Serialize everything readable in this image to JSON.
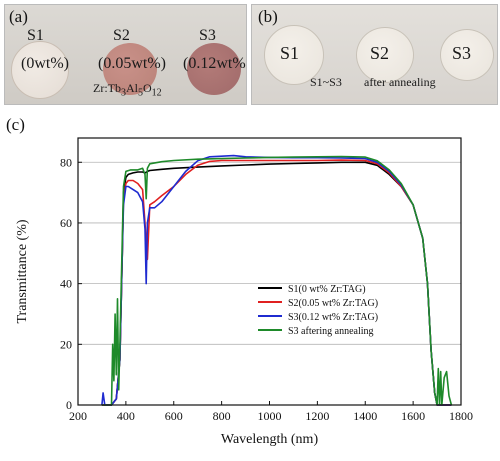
{
  "photo_a": {
    "tag": "(a)",
    "samples": [
      {
        "name": "S1",
        "note": "(0wt%)"
      },
      {
        "name": "S2",
        "note": "(0.05wt%)"
      },
      {
        "name": "S3",
        "note": "(0.12wt%)"
      }
    ],
    "formula_prefix": "Zr:Tb",
    "formula_sub1": "3",
    "formula_mid": "Al",
    "formula_sub2": "5",
    "formula_end": "O",
    "formula_sub3": "12",
    "colors": {
      "s1": "#e4dcd4",
      "s2": "#b98278",
      "s3": "#a06a6a"
    }
  },
  "photo_b": {
    "tag": "(b)",
    "samples": [
      "S1",
      "S2",
      "S3"
    ],
    "caption_range": "S1~S3",
    "caption_state": "after annealing",
    "colors": {
      "disc": "#e9e4dc"
    }
  },
  "chart_data": {
    "type": "line",
    "panel_tag": "(c)",
    "xlabel": "Wavelength (nm)",
    "ylabel": "Transmittance (%)",
    "xlim": [
      200,
      1800
    ],
    "ylim": [
      0,
      88
    ],
    "xticks": [
      200,
      400,
      600,
      800,
      1000,
      1200,
      1400,
      1600,
      1800
    ],
    "yticks": [
      0,
      20,
      40,
      60,
      80
    ],
    "grid": "horizontal",
    "legend_position": "lower-center",
    "series": [
      {
        "name": "S1(0 wt% Zr:TAG)",
        "color": "#000000",
        "x": [
          300,
          340,
          360,
          375,
          385,
          390,
          400,
          410,
          430,
          450,
          470,
          480,
          490,
          500,
          550,
          600,
          700,
          800,
          900,
          1000,
          1100,
          1200,
          1300,
          1400,
          1450,
          1500,
          1550,
          1600,
          1640,
          1660,
          1675,
          1690,
          1700,
          1720,
          1760
        ],
        "y": [
          0,
          0,
          2,
          15,
          50,
          70,
          75,
          76,
          76.5,
          76.8,
          76.8,
          76.5,
          77,
          77.3,
          77.7,
          78,
          78.4,
          78.8,
          79.1,
          79.4,
          79.6,
          79.8,
          80,
          80,
          79,
          76,
          72,
          66,
          55,
          40,
          18,
          4,
          0,
          0,
          0
        ]
      },
      {
        "name": "S2(0.05 wt% Zr:TAG)",
        "color": "#e02020",
        "x": [
          300,
          340,
          360,
          375,
          385,
          390,
          400,
          410,
          430,
          450,
          470,
          480,
          490,
          500,
          520,
          550,
          600,
          650,
          700,
          750,
          800,
          900,
          1000,
          1100,
          1200,
          1300,
          1400,
          1450,
          1500,
          1550,
          1600,
          1640,
          1660,
          1675,
          1690,
          1700,
          1720,
          1760
        ],
        "y": [
          0,
          0,
          2,
          15,
          50,
          68,
          73,
          74,
          74,
          73,
          71,
          60,
          48,
          66,
          67,
          69,
          72,
          76,
          79,
          80.3,
          80.6,
          80.6,
          80.6,
          80.6,
          80.6,
          80.7,
          80.6,
          79.5,
          76.5,
          72,
          66,
          55,
          40,
          18,
          4,
          0,
          0,
          0
        ]
      },
      {
        "name": "S3(0.12 wt% Zr:TAG)",
        "color": "#1f2bd0",
        "x": [
          300,
          305,
          312,
          340,
          360,
          375,
          385,
          390,
          400,
          410,
          430,
          450,
          470,
          480,
          485,
          490,
          500,
          520,
          550,
          600,
          650,
          700,
          750,
          800,
          850,
          900,
          1000,
          1100,
          1200,
          1300,
          1400,
          1450,
          1500,
          1550,
          1600,
          1640,
          1660,
          1675,
          1690,
          1700,
          1720,
          1760
        ],
        "y": [
          0,
          4,
          0,
          0,
          2,
          15,
          50,
          66,
          72,
          72,
          71,
          70,
          67,
          58,
          40,
          60,
          65,
          65,
          67,
          72,
          77,
          80.5,
          81.8,
          82,
          82.2,
          81.8,
          81.6,
          81.5,
          81.5,
          81.4,
          81.2,
          80,
          77,
          72.5,
          66,
          55,
          40,
          18,
          4,
          0,
          0,
          0
        ]
      },
      {
        "name": "S3 aftering annealing",
        "color": "#1e8a2a",
        "x": [
          300,
          340,
          345,
          350,
          355,
          360,
          365,
          370,
          375,
          385,
          390,
          400,
          420,
          450,
          470,
          480,
          485,
          490,
          500,
          550,
          600,
          700,
          800,
          900,
          1000,
          1100,
          1200,
          1300,
          1400,
          1450,
          1500,
          1550,
          1600,
          1640,
          1660,
          1675,
          1690,
          1700,
          1705,
          1710,
          1715,
          1720,
          1730,
          1740,
          1750,
          1760
        ],
        "y": [
          0,
          0,
          20,
          8,
          30,
          10,
          35,
          5,
          20,
          55,
          72,
          77,
          77.5,
          77.5,
          78,
          76,
          68,
          78,
          79.5,
          80.2,
          80.6,
          81,
          81.2,
          81.4,
          81.6,
          81.7,
          81.8,
          81.9,
          81.7,
          80.5,
          77.5,
          73,
          66,
          55,
          40,
          18,
          4,
          0,
          12,
          0,
          11,
          0,
          9,
          11,
          3,
          0
        ]
      }
    ]
  }
}
